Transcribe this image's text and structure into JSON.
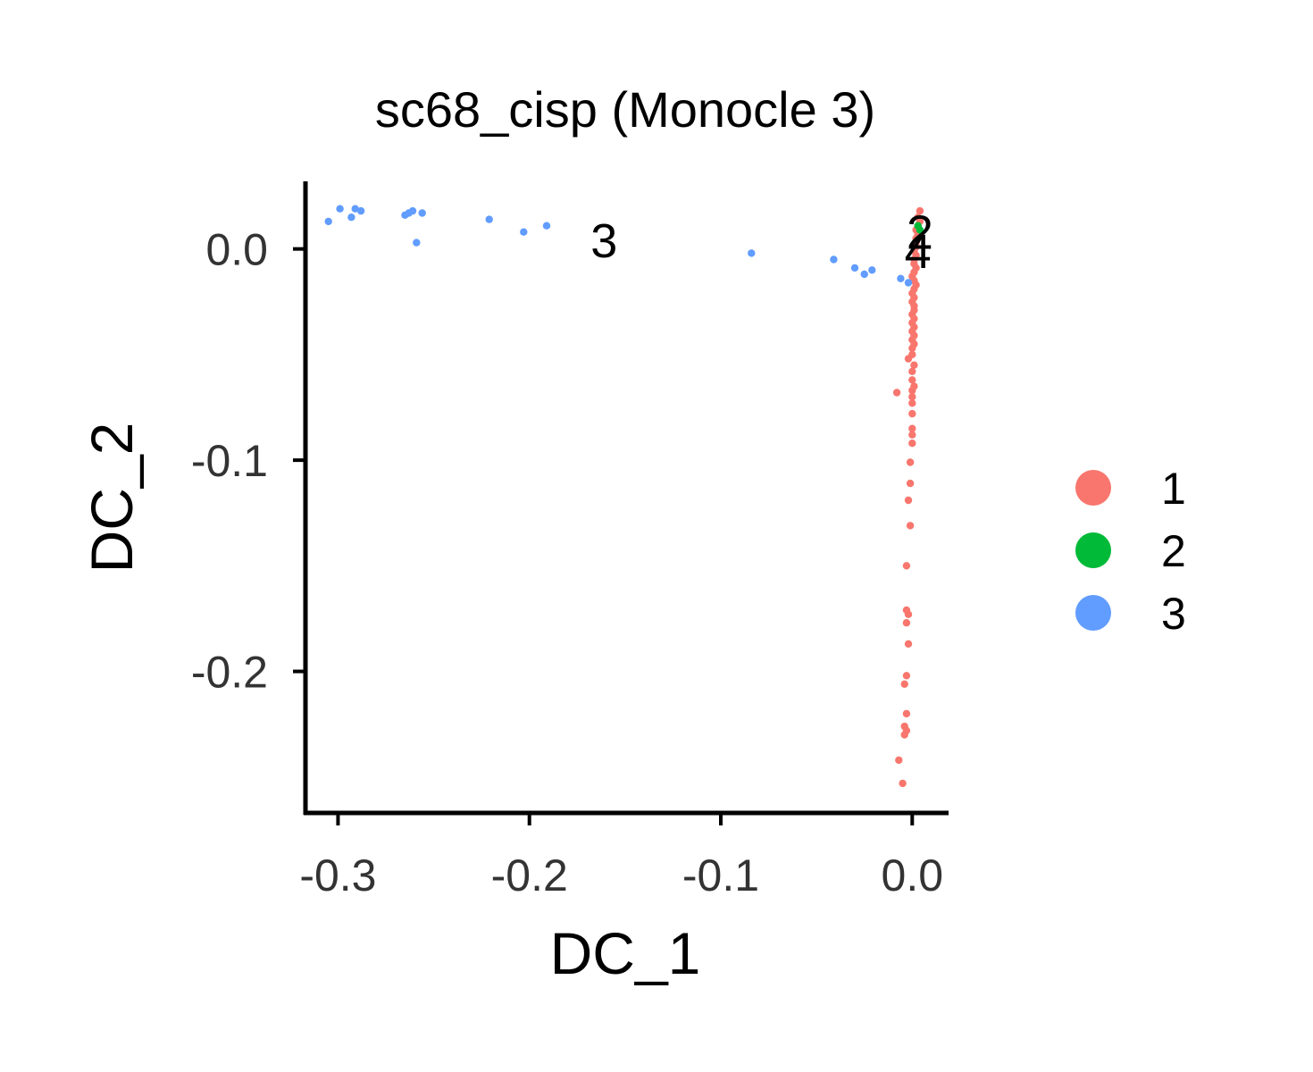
{
  "chart_data": {
    "type": "scatter",
    "title": "sc68_cisp (Monocle 3)",
    "xlabel": "DC_1",
    "ylabel": "DC_2",
    "xlim": [
      -0.317,
      0.019
    ],
    "ylim": [
      -0.267,
      0.032
    ],
    "xticks": [
      -0.3,
      -0.2,
      -0.1,
      0.0
    ],
    "xtick_labels": [
      "-0.3",
      "-0.2",
      "-0.1",
      "0.0"
    ],
    "yticks": [
      0.0,
      -0.1,
      -0.2
    ],
    "ytick_labels": [
      "0.0",
      "-0.1",
      "-0.2"
    ],
    "grid": false,
    "legend": "right",
    "series": [
      {
        "name": "1",
        "color": "#F8766D",
        "points": [
          [
            0.004,
            0.018
          ],
          [
            0.003,
            0.015
          ],
          [
            0.004,
            0.013
          ],
          [
            0.003,
            0.011
          ],
          [
            0.002,
            0.009
          ],
          [
            0.003,
            0.007
          ],
          [
            0.002,
            0.005
          ],
          [
            0.002,
            0.003
          ],
          [
            0.002,
            0.001
          ],
          [
            0.001,
            -0.001
          ],
          [
            0.002,
            -0.003
          ],
          [
            0.001,
            -0.005
          ],
          [
            0.001,
            -0.007
          ],
          [
            0.002,
            -0.009
          ],
          [
            0.001,
            -0.011
          ],
          [
            0.0,
            -0.013
          ],
          [
            0.001,
            -0.015
          ],
          [
            0.002,
            -0.017
          ],
          [
            0.001,
            -0.019
          ],
          [
            0.0,
            -0.021
          ],
          [
            0.001,
            -0.023
          ],
          [
            0.0,
            -0.025
          ],
          [
            0.001,
            -0.027
          ],
          [
            0.001,
            -0.029
          ],
          [
            0.0,
            -0.031
          ],
          [
            0.001,
            -0.033
          ],
          [
            0.0,
            -0.035
          ],
          [
            0.001,
            -0.037
          ],
          [
            0.0,
            -0.039
          ],
          [
            0.001,
            -0.041
          ],
          [
            0.0,
            -0.043
          ],
          [
            0.001,
            -0.045
          ],
          [
            0.0,
            -0.047
          ],
          [
            0.0,
            -0.05
          ],
          [
            -0.002,
            -0.052
          ],
          [
            0.001,
            -0.055
          ],
          [
            0.0,
            -0.058
          ],
          [
            0.0,
            -0.062
          ],
          [
            0.001,
            -0.065
          ],
          [
            0.0,
            -0.067
          ],
          [
            -0.008,
            -0.068
          ],
          [
            0.0,
            -0.07
          ],
          [
            0.0,
            -0.073
          ],
          [
            0.0,
            -0.078
          ],
          [
            0.0,
            -0.085
          ],
          [
            0.0,
            -0.088
          ],
          [
            0.0,
            -0.092
          ],
          [
            -0.001,
            -0.101
          ],
          [
            -0.001,
            -0.111
          ],
          [
            -0.002,
            -0.119
          ],
          [
            -0.001,
            -0.131
          ],
          [
            -0.003,
            -0.15
          ],
          [
            -0.003,
            -0.171
          ],
          [
            -0.002,
            -0.173
          ],
          [
            -0.003,
            -0.177
          ],
          [
            -0.002,
            -0.187
          ],
          [
            -0.003,
            -0.202
          ],
          [
            -0.004,
            -0.206
          ],
          [
            -0.003,
            -0.22
          ],
          [
            -0.004,
            -0.226
          ],
          [
            -0.003,
            -0.228
          ],
          [
            -0.004,
            -0.23
          ],
          [
            -0.007,
            -0.242
          ],
          [
            -0.005,
            -0.253
          ]
        ]
      },
      {
        "name": "2",
        "color": "#00BA38",
        "points": [
          [
            0.003,
            0.011
          ],
          [
            0.004,
            0.009
          ]
        ]
      },
      {
        "name": "3",
        "color": "#619CFF",
        "points": [
          [
            -0.305,
            0.013
          ],
          [
            -0.299,
            0.019
          ],
          [
            -0.293,
            0.015
          ],
          [
            -0.291,
            0.019
          ],
          [
            -0.288,
            0.018
          ],
          [
            -0.265,
            0.016
          ],
          [
            -0.263,
            0.017
          ],
          [
            -0.261,
            0.018
          ],
          [
            -0.259,
            0.003
          ],
          [
            -0.256,
            0.017
          ],
          [
            -0.221,
            0.014
          ],
          [
            -0.203,
            0.008
          ],
          [
            -0.191,
            0.011
          ],
          [
            -0.084,
            -0.002
          ],
          [
            -0.041,
            -0.005
          ],
          [
            -0.03,
            -0.009
          ],
          [
            -0.025,
            -0.012
          ],
          [
            -0.021,
            -0.01
          ],
          [
            -0.006,
            -0.014
          ],
          [
            -0.002,
            -0.016
          ]
        ]
      }
    ],
    "cluster_labels": [
      {
        "text": "3",
        "x": -0.161,
        "y": 0.004
      },
      {
        "text": "2",
        "x": 0.004,
        "y": 0.008
      },
      {
        "text": "4",
        "x": 0.003,
        "y": -0.001
      }
    ]
  }
}
